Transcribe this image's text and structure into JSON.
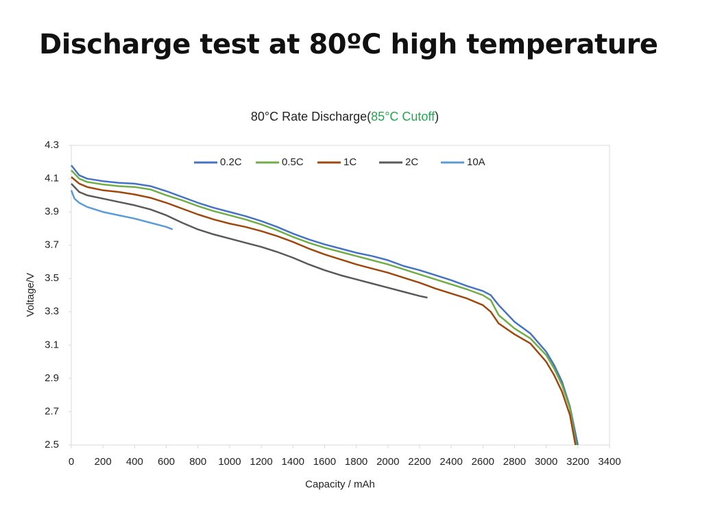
{
  "header": {
    "title": "Discharge test at 80ºC high temperature"
  },
  "chart_data": {
    "type": "line",
    "title_parts": [
      {
        "text": "80°C Rate Discharge(",
        "color": "#222222"
      },
      {
        "text": "85°C Cutoff",
        "color": "#21a84f"
      },
      {
        "text": ")",
        "color": "#222222"
      }
    ],
    "x_label": "Capacity / mAh",
    "y_label": "Voltage/V",
    "xlim": [
      0,
      3400
    ],
    "xticks": [
      0,
      200,
      400,
      600,
      800,
      1000,
      1200,
      1400,
      1600,
      1800,
      2000,
      2200,
      2400,
      2600,
      2800,
      3000,
      3200,
      3400
    ],
    "ylim": [
      2.5,
      4.3
    ],
    "yticks": [
      2.5,
      2.7,
      2.9,
      3.1,
      3.3,
      3.5,
      3.7,
      3.9,
      4.1,
      4.3
    ],
    "legend": "top",
    "series": [
      {
        "name": "0.2C",
        "color": "#4472c4",
        "x": [
          0,
          50,
          100,
          200,
          300,
          400,
          500,
          600,
          700,
          800,
          900,
          1000,
          1100,
          1200,
          1300,
          1400,
          1500,
          1600,
          1700,
          1800,
          1900,
          2000,
          2100,
          2200,
          2300,
          2400,
          2500,
          2600,
          2650,
          2700,
          2800,
          2900,
          3000,
          3050,
          3100,
          3150,
          3200
        ],
        "values": [
          4.18,
          4.12,
          4.1,
          4.085,
          4.075,
          4.07,
          4.055,
          4.025,
          3.99,
          3.955,
          3.925,
          3.9,
          3.875,
          3.845,
          3.81,
          3.77,
          3.735,
          3.705,
          3.68,
          3.655,
          3.635,
          3.61,
          3.575,
          3.55,
          3.52,
          3.49,
          3.455,
          3.425,
          3.4,
          3.34,
          3.24,
          3.17,
          3.06,
          2.98,
          2.88,
          2.73,
          2.5
        ]
      },
      {
        "name": "0.5C",
        "color": "#70ad47",
        "x": [
          0,
          50,
          100,
          200,
          300,
          400,
          500,
          600,
          700,
          800,
          900,
          1000,
          1100,
          1200,
          1300,
          1400,
          1500,
          1600,
          1700,
          1800,
          1900,
          2000,
          2100,
          2200,
          2300,
          2400,
          2500,
          2600,
          2650,
          2700,
          2800,
          2900,
          3000,
          3050,
          3100,
          3150,
          3190
        ],
        "values": [
          4.15,
          4.1,
          4.08,
          4.065,
          4.055,
          4.05,
          4.035,
          4.0,
          3.97,
          3.935,
          3.905,
          3.88,
          3.855,
          3.825,
          3.79,
          3.75,
          3.715,
          3.685,
          3.66,
          3.635,
          3.61,
          3.585,
          3.555,
          3.525,
          3.495,
          3.465,
          3.435,
          3.4,
          3.37,
          3.28,
          3.2,
          3.14,
          3.04,
          2.96,
          2.86,
          2.72,
          2.5
        ]
      },
      {
        "name": "1C",
        "color": "#9e480e",
        "x": [
          0,
          50,
          100,
          200,
          300,
          400,
          500,
          600,
          700,
          800,
          900,
          1000,
          1100,
          1200,
          1300,
          1400,
          1500,
          1600,
          1700,
          1800,
          1900,
          2000,
          2100,
          2200,
          2300,
          2400,
          2500,
          2600,
          2650,
          2700,
          2800,
          2900,
          3000,
          3050,
          3100,
          3150,
          3185
        ],
        "values": [
          4.11,
          4.07,
          4.05,
          4.03,
          4.02,
          4.005,
          3.985,
          3.955,
          3.92,
          3.885,
          3.855,
          3.83,
          3.81,
          3.785,
          3.755,
          3.72,
          3.68,
          3.645,
          3.615,
          3.585,
          3.56,
          3.535,
          3.505,
          3.475,
          3.44,
          3.41,
          3.38,
          3.34,
          3.3,
          3.23,
          3.165,
          3.11,
          3.0,
          2.92,
          2.82,
          2.68,
          2.5
        ]
      },
      {
        "name": "2C",
        "color": "#595959",
        "x": [
          0,
          50,
          100,
          200,
          300,
          400,
          500,
          600,
          700,
          800,
          900,
          1000,
          1100,
          1200,
          1300,
          1400,
          1500,
          1600,
          1700,
          1800,
          1900,
          2000,
          2100,
          2200,
          2250
        ],
        "values": [
          4.07,
          4.02,
          4.0,
          3.98,
          3.96,
          3.94,
          3.915,
          3.88,
          3.835,
          3.795,
          3.765,
          3.74,
          3.715,
          3.69,
          3.66,
          3.625,
          3.585,
          3.55,
          3.52,
          3.495,
          3.47,
          3.445,
          3.42,
          3.395,
          3.385
        ]
      },
      {
        "name": "10A",
        "color": "#5b9bd5",
        "x": [
          0,
          20,
          50,
          100,
          200,
          300,
          400,
          500,
          600,
          640
        ],
        "values": [
          4.03,
          3.98,
          3.955,
          3.93,
          3.9,
          3.88,
          3.86,
          3.835,
          3.81,
          3.795
        ]
      }
    ]
  }
}
